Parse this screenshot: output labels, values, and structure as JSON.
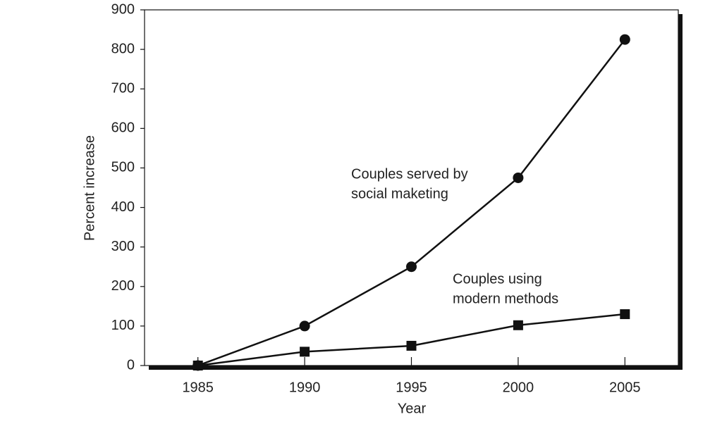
{
  "chart_data": {
    "type": "line",
    "x_label": "Year",
    "y_label": "Percent increase",
    "x": [
      1985,
      1990,
      1995,
      2000,
      2005
    ],
    "series": [
      {
        "color": "#111111",
        "marker": "circle",
        "values": [
          0,
          100,
          250,
          475,
          825
        ]
      },
      {
        "color": "#111111",
        "marker": "square",
        "values": [
          0,
          35,
          50,
          102,
          130
        ]
      }
    ],
    "annotations": [
      {
        "lines": [
          "Couples served by",
          "social maketing"
        ]
      },
      {
        "lines": [
          "Couples using",
          "modern methods"
        ]
      }
    ],
    "xlim": [
      1982.5,
      2007.5
    ],
    "xticks": [
      1985,
      1990,
      1995,
      2000,
      2005
    ],
    "ylim": [
      0,
      900
    ],
    "yticks": [
      0,
      100,
      200,
      300,
      400,
      500,
      600,
      700,
      800,
      900
    ],
    "grid": false
  }
}
